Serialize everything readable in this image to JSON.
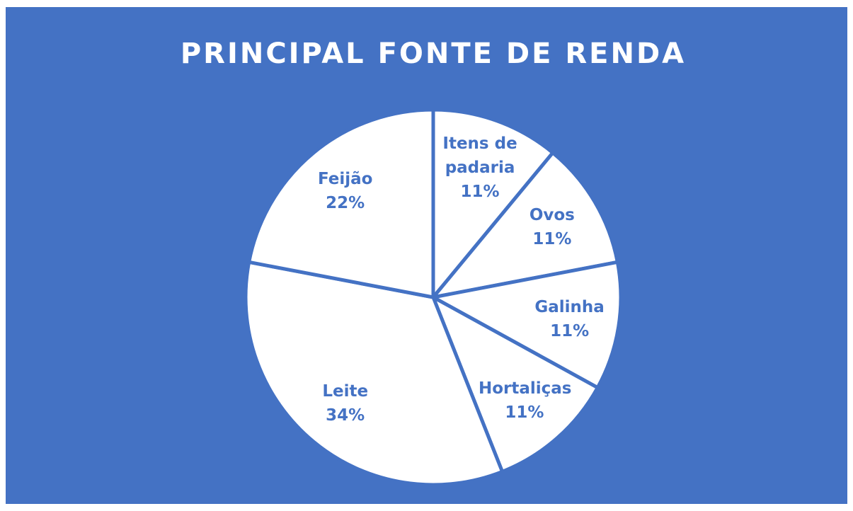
{
  "chart_data": {
    "type": "pie",
    "title": "PRINCIPAL FONTE DE RENDA",
    "categories": [
      "Itens de padaria",
      "Ovos",
      "Galinha",
      "Hortaliças",
      "Leite",
      "Feijão"
    ],
    "values": [
      11,
      11,
      11,
      11,
      34,
      22
    ],
    "value_labels": [
      "11%",
      "11%",
      "11%",
      "11%",
      "34%",
      "22%"
    ],
    "color": "#ffffff",
    "background": "#4472c4",
    "label_color": "#4472c4"
  }
}
